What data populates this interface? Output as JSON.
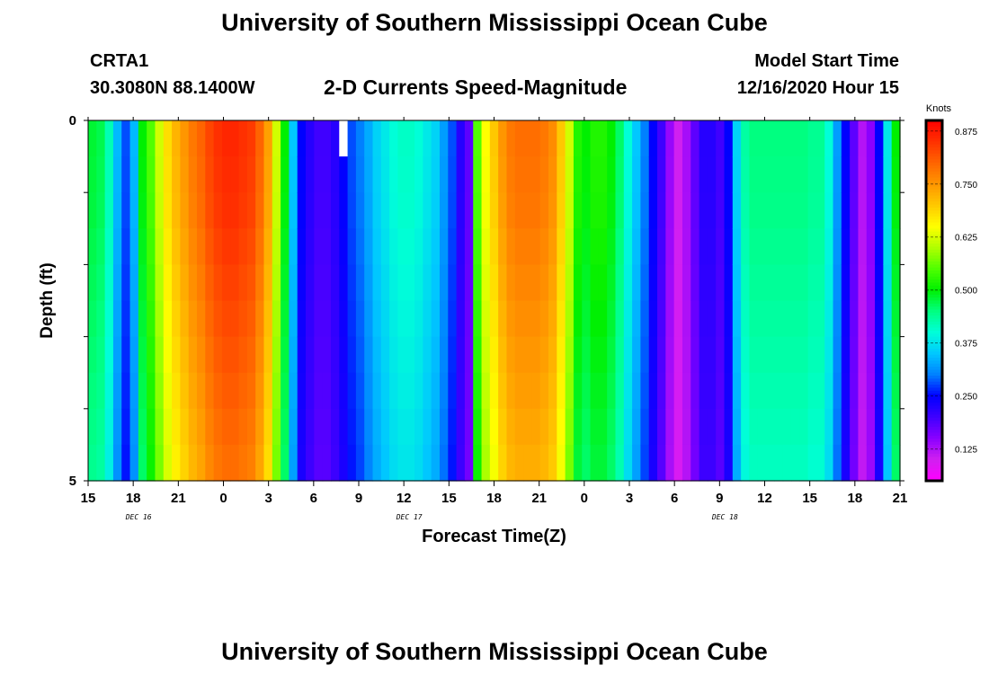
{
  "header": {
    "title": "University of Southern Mississippi Ocean Cube",
    "station": "CRTA1",
    "coords": "30.3080N 88.1400W",
    "plot_title": "2-D Currents Speed-Magnitude",
    "model_start_label": "Model Start Time",
    "model_start_value": "12/16/2020 Hour 15"
  },
  "footer": {
    "title": "University of Southern Mississippi Ocean Cube"
  },
  "chart_data": {
    "type": "heatmap",
    "title": "2-D Currents Speed-Magnitude",
    "xlabel": "Forecast Time(Z)",
    "ylabel": "Depth (ft)",
    "y_ticks": [
      "0",
      "5"
    ],
    "ylim": [
      0,
      5
    ],
    "x_ticks": [
      "15",
      "18",
      "21",
      "0",
      "3",
      "6",
      "9",
      "12",
      "15",
      "18",
      "21",
      "0",
      "3",
      "6",
      "9",
      "12",
      "15",
      "18",
      "21"
    ],
    "date_labels": [
      {
        "label": "DEC 16",
        "tick_index": 1
      },
      {
        "label": "DEC 17",
        "tick_index": 7
      },
      {
        "label": "DEC 18",
        "tick_index": 14
      }
    ],
    "colorbar": {
      "unit": "Knots",
      "min": 0.05,
      "max": 0.9,
      "ticks": [
        "0.125",
        "0.250",
        "0.375",
        "0.500",
        "0.625",
        "0.750",
        "0.875"
      ],
      "colors": [
        "#ff00ff",
        "#d020f0",
        "#8a00ff",
        "#3f00ff",
        "#0000ff",
        "#0080ff",
        "#00c8ff",
        "#00ffd8",
        "#00ff80",
        "#00f000",
        "#50ff00",
        "#b0ff00",
        "#ffff00",
        "#ffc800",
        "#ff9600",
        "#ff6400",
        "#ff3000",
        "#ff0000"
      ]
    },
    "depth_rows_ft": [
      0.25,
      0.75,
      1.25,
      1.75,
      2.25,
      2.75,
      3.25,
      3.75,
      4.25,
      4.75
    ],
    "speed_knots": [
      0.48,
      0.47,
      0.42,
      0.34,
      0.28,
      0.34,
      0.5,
      0.55,
      0.62,
      0.68,
      0.72,
      0.75,
      0.78,
      0.8,
      0.83,
      0.85,
      0.86,
      0.86,
      0.85,
      0.84,
      0.8,
      0.74,
      0.62,
      0.5,
      0.35,
      0.25,
      0.22,
      0.2,
      0.2,
      0.22,
      0.25,
      0.28,
      0.3,
      0.33,
      0.36,
      0.38,
      0.4,
      0.41,
      0.41,
      0.4,
      0.38,
      0.36,
      0.32,
      0.28,
      0.22,
      0.18,
      0.55,
      0.65,
      0.7,
      0.75,
      0.78,
      0.79,
      0.79,
      0.79,
      0.78,
      0.76,
      0.7,
      0.62,
      0.52,
      0.5,
      0.52,
      0.52,
      0.5,
      0.46,
      0.4,
      0.35,
      0.3,
      0.25,
      0.2,
      0.14,
      0.1,
      0.13,
      0.18,
      0.22,
      0.22,
      0.2,
      0.25,
      0.36,
      0.43,
      0.45,
      0.45,
      0.45,
      0.45,
      0.45,
      0.45,
      0.45,
      0.44,
      0.44,
      0.4,
      0.32,
      0.25,
      0.18,
      0.12,
      0.15,
      0.25,
      0.38,
      0.5
    ],
    "depth_factors": [
      1.0,
      0.995,
      0.99,
      0.98,
      0.97,
      0.96,
      0.95,
      0.94,
      0.93,
      0.92
    ],
    "missing_cells": [
      {
        "col": 30,
        "row": 0
      }
    ]
  }
}
